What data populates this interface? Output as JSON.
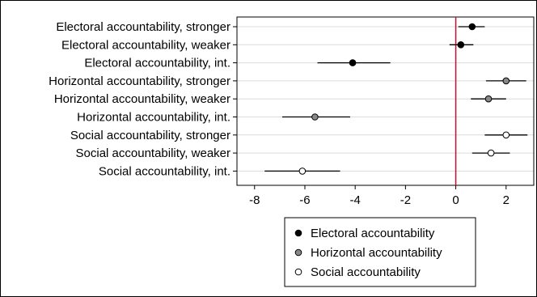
{
  "chart_data": {
    "type": "scatter",
    "title": "",
    "xlabel": "",
    "ylabel": "",
    "xlim": [
      -8.7,
      3.1
    ],
    "xticks": [
      -8,
      -6,
      -4,
      -2,
      0,
      2
    ],
    "xtick_labels": [
      "-8",
      "-6",
      "-4",
      "-2",
      "0",
      "2"
    ],
    "reference_line": {
      "x": 0,
      "color": "#c8102e"
    },
    "grid": "horizontal",
    "categories": [
      "Electoral accountability, stronger",
      "Electoral accountability, weaker",
      "Electoral accountability, int.",
      "Horizontal accountability, stronger",
      "Horizontal accountability, weaker",
      "Horizontal accountability, int.",
      "Social accountability, stronger",
      "Social accountability, weaker",
      "Social accountability, int."
    ],
    "points": [
      {
        "category": "Electoral accountability, stronger",
        "series": "Electoral accountability",
        "estimate": 0.65,
        "ci_low": 0.1,
        "ci_high": 1.15
      },
      {
        "category": "Electoral accountability, weaker",
        "series": "Electoral accountability",
        "estimate": 0.2,
        "ci_low": -0.25,
        "ci_high": 0.7
      },
      {
        "category": "Electoral accountability, int.",
        "series": "Electoral accountability",
        "estimate": -4.1,
        "ci_low": -5.5,
        "ci_high": -2.6
      },
      {
        "category": "Horizontal accountability, stronger",
        "series": "Horizontal accountability",
        "estimate": 2.0,
        "ci_low": 1.2,
        "ci_high": 2.8
      },
      {
        "category": "Horizontal accountability, weaker",
        "series": "Horizontal accountability",
        "estimate": 1.3,
        "ci_low": 0.6,
        "ci_high": 2.0
      },
      {
        "category": "Horizontal accountability, int.",
        "series": "Horizontal accountability",
        "estimate": -5.6,
        "ci_low": -6.9,
        "ci_high": -4.2
      },
      {
        "category": "Social accountability, stronger",
        "series": "Social accountability",
        "estimate": 2.0,
        "ci_low": 1.15,
        "ci_high": 2.85
      },
      {
        "category": "Social accountability, weaker",
        "series": "Social accountability",
        "estimate": 1.4,
        "ci_low": 0.65,
        "ci_high": 2.15
      },
      {
        "category": "Social accountability, int.",
        "series": "Social accountability",
        "estimate": -6.1,
        "ci_low": -7.6,
        "ci_high": -4.6
      }
    ],
    "series": [
      {
        "name": "Electoral accountability",
        "marker_fill": "#000000"
      },
      {
        "name": "Horizontal accountability",
        "marker_fill": "#888888"
      },
      {
        "name": "Social accountability",
        "marker_fill": "#ffffff"
      }
    ],
    "legend_placement": "bottom-center",
    "colors": {
      "axis": "#000000",
      "grid": "#dcdcdc",
      "ci": "#000000",
      "marker_stroke": "#000000",
      "refline": "#c8102e"
    }
  }
}
